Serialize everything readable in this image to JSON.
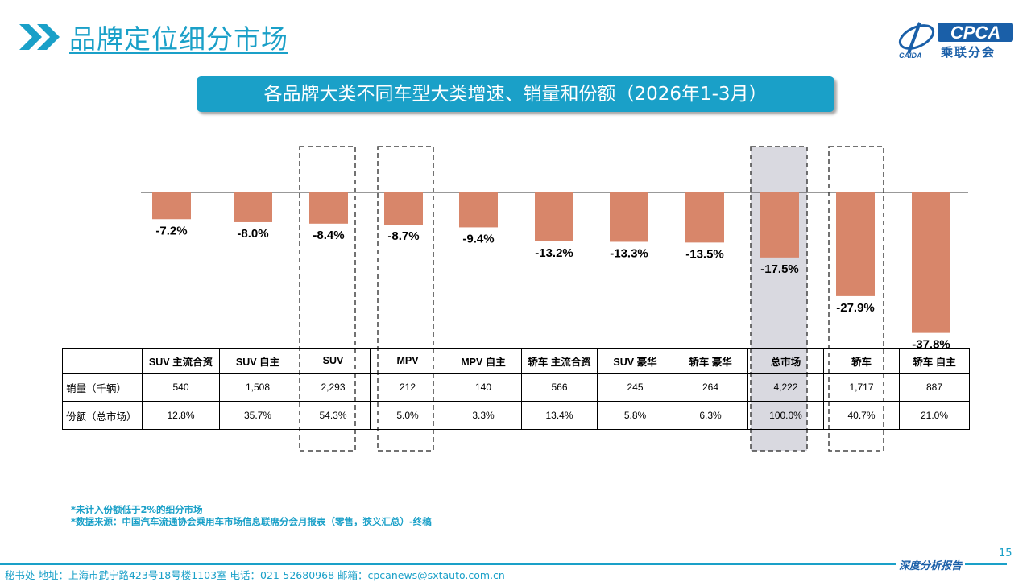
{
  "header": {
    "title": "品牌定位细分市场",
    "logo_text": "CPCA",
    "logo_sub": "乘联分会",
    "logo_small": "CAIDA"
  },
  "chart_title": "各品牌大类不同车型大类增速、销量和份额（2026年1-3月）",
  "chart_data": {
    "type": "bar",
    "title": "各品牌大类不同车型大类增速、销量和份额（2026年1-3月）",
    "categories": [
      "SUV 主流合资",
      "SUV 自主",
      "SUV",
      "MPV",
      "MPV 自主",
      "轿车 主流合资",
      "SUV 豪华",
      "轿车 豪华",
      "总市场",
      "轿车",
      "轿车 自主"
    ],
    "values": [
      -7.2,
      -8.0,
      -8.4,
      -8.7,
      -9.4,
      -13.2,
      -13.3,
      -13.5,
      -17.5,
      -27.9,
      -37.8
    ],
    "value_labels": [
      "-7.2%",
      "-8.0%",
      "-8.4%",
      "-8.7%",
      "-9.4%",
      "-13.2%",
      "-13.3%",
      "-13.5%",
      "-17.5%",
      "-27.9%",
      "-37.8%"
    ],
    "unit": "%",
    "ylim": [
      -40,
      0
    ],
    "highlighted_categories": [
      "SUV",
      "MPV",
      "总市场",
      "轿车"
    ],
    "bar_color": "#d8866a",
    "table": {
      "row_labels": [
        "销量（千辆）",
        "份额（总市场）"
      ],
      "sales": [
        "540",
        "1,508",
        "2,293",
        "212",
        "140",
        "566",
        "245",
        "264",
        "4,222",
        "1,717",
        "887"
      ],
      "share": [
        "12.8%",
        "35.7%",
        "54.3%",
        "5.0%",
        "3.3%",
        "13.4%",
        "5.8%",
        "6.3%",
        "100.0%",
        "40.7%",
        "21.0%"
      ]
    }
  },
  "notes": [
    "*未计入份额低于2%的细分市场",
    "*数据来源：中国汽车流通协会乘用车市场信息联席分会月报表（零售，狭义汇总）-终稿"
  ],
  "footer": {
    "text": "秘书处  地址：上海市武宁路423号18号楼1103室  电话：021-52680968  邮箱：cpcanews@sxtauto.com.cn",
    "right": "深度分析报告",
    "page_number": "15"
  },
  "colors": {
    "accent": "#1aa0c8",
    "bar": "#d8866a",
    "highlight_fill": "#d9d9e0",
    "logo_blue": "#1a5fa8"
  }
}
